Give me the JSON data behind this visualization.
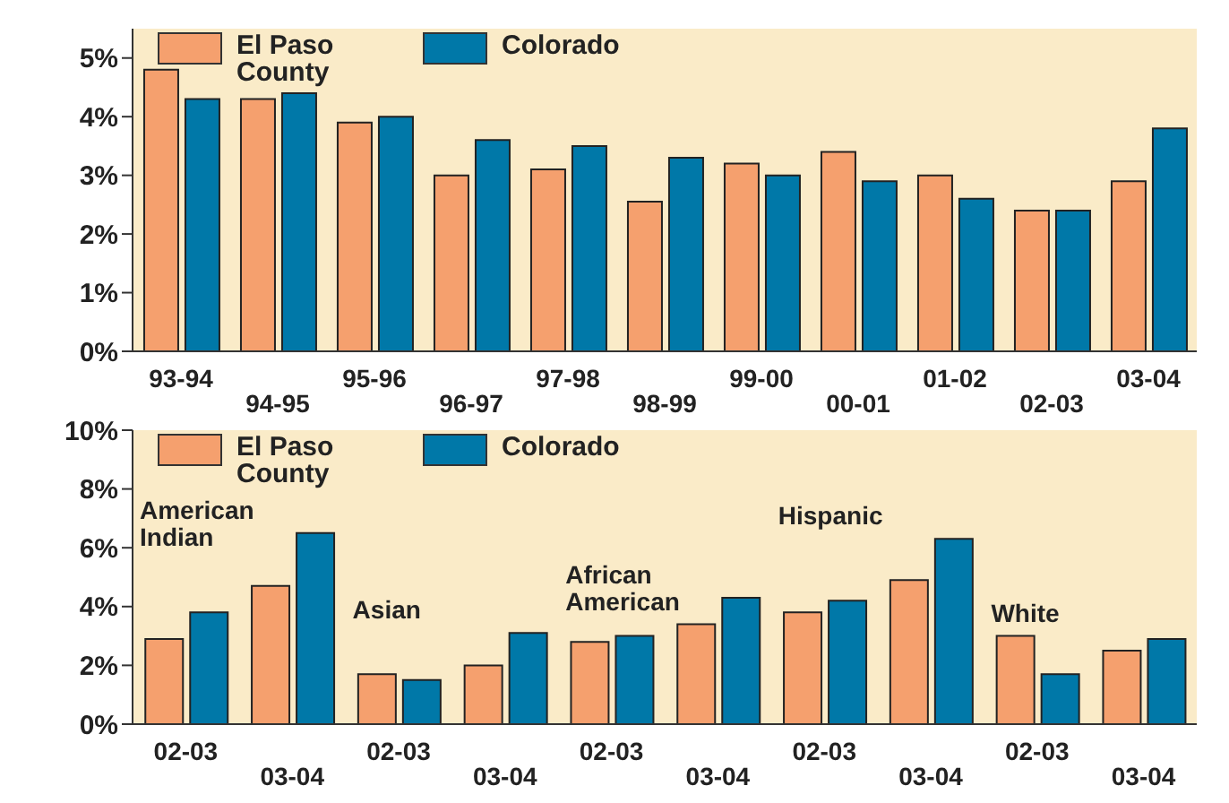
{
  "chart_data": [
    {
      "type": "bar",
      "categories": [
        "93-94",
        "94-95",
        "95-96",
        "96-97",
        "97-98",
        "98-99",
        "99-00",
        "00-01",
        "01-02",
        "02-03",
        "03-04"
      ],
      "series": [
        {
          "name": "El Paso County",
          "color": "#f5a06e",
          "values": [
            4.8,
            4.3,
            3.9,
            3.0,
            3.1,
            2.55,
            3.2,
            3.4,
            3.0,
            2.4,
            2.9
          ]
        },
        {
          "name": "Colorado",
          "color": "#0078a8",
          "values": [
            4.3,
            4.4,
            4.0,
            3.6,
            3.5,
            3.3,
            3.0,
            2.9,
            2.6,
            2.4,
            3.8
          ]
        }
      ],
      "ylim": [
        0,
        5.5
      ],
      "yticks": [
        {
          "value": 0,
          "label": "0%"
        },
        {
          "value": 1,
          "label": "1%"
        },
        {
          "value": 2,
          "label": "2%"
        },
        {
          "value": 3,
          "label": "3%"
        },
        {
          "value": 4,
          "label": "4%"
        },
        {
          "value": 5,
          "label": "5%"
        }
      ],
      "legend": "top left"
    },
    {
      "type": "bar",
      "categories": [
        "02-03",
        "03-04",
        "02-03",
        "03-04",
        "02-03",
        "03-04",
        "02-03",
        "03-04",
        "02-03",
        "03-04"
      ],
      "series": [
        {
          "name": "El Paso County",
          "color": "#f5a06e",
          "values": [
            2.9,
            4.7,
            1.7,
            2.0,
            2.8,
            3.4,
            3.8,
            4.9,
            3.0,
            2.5
          ]
        },
        {
          "name": "Colorado",
          "color": "#0078a8",
          "values": [
            3.8,
            6.5,
            1.5,
            3.1,
            3.0,
            4.3,
            4.2,
            6.3,
            1.7,
            2.9
          ]
        }
      ],
      "ylim": [
        0,
        10
      ],
      "yticks": [
        {
          "value": 0,
          "label": "0%"
        },
        {
          "value": 2,
          "label": "2%"
        },
        {
          "value": 4,
          "label": "4%"
        },
        {
          "value": 6,
          "label": "6%"
        },
        {
          "value": 8,
          "label": "8%"
        },
        {
          "value": 10,
          "label": "10%"
        }
      ],
      "annotations": [
        "American Indian",
        "Asian",
        "African American",
        "Hispanic",
        "White"
      ],
      "legend": "top left"
    }
  ]
}
